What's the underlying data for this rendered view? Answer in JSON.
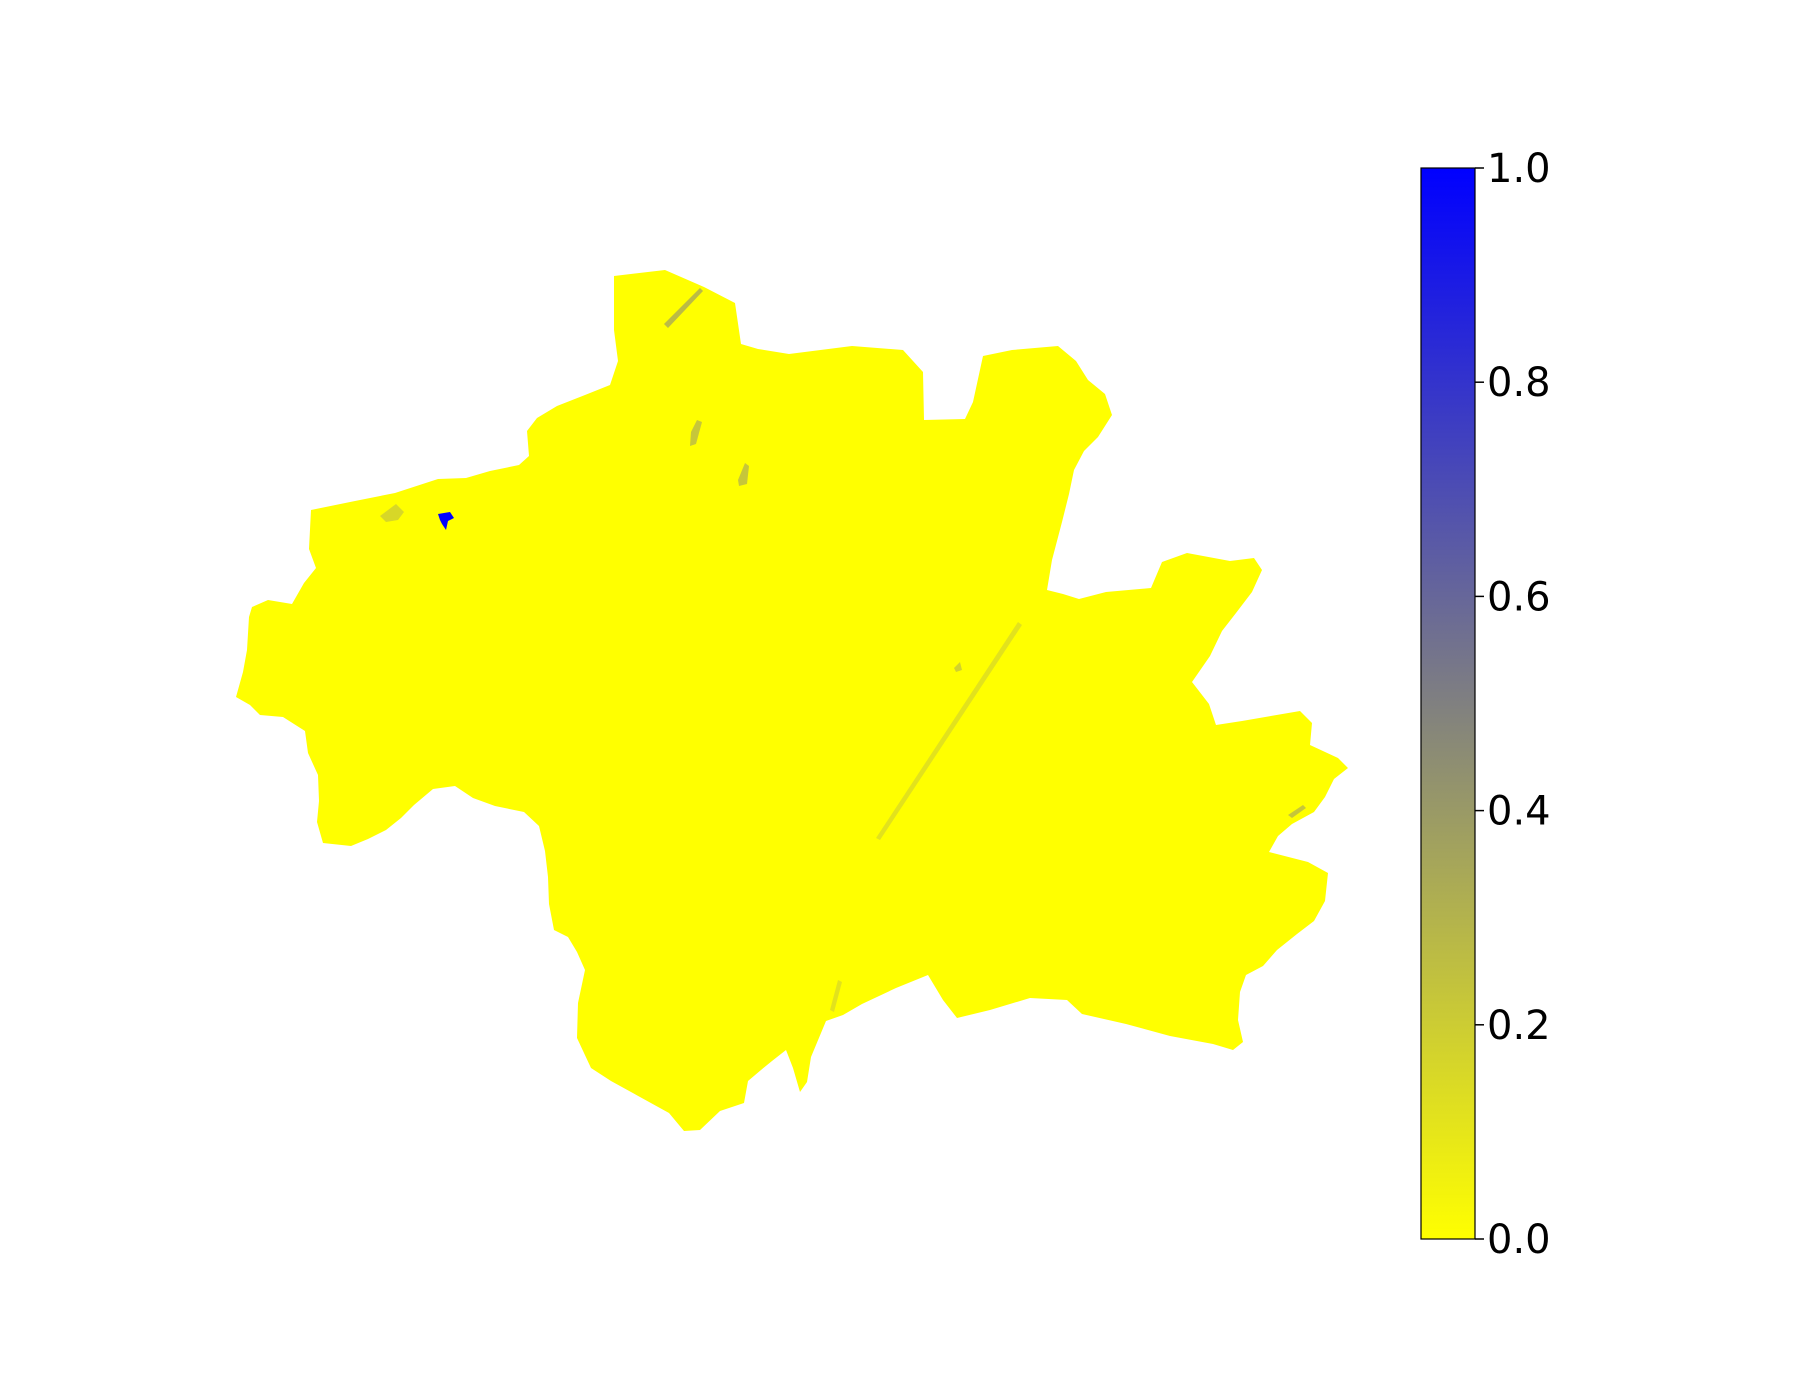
{
  "map": {
    "fill_color": "#ffff00",
    "high_value_patch": {
      "value": 1.0
    },
    "mid_value_patches": {
      "value_range": [
        0.3,
        0.6
      ]
    }
  },
  "colorbar": {
    "range": [
      0.0,
      1.0
    ],
    "low_color": "#ffff00",
    "mid_color": "#808080",
    "high_color": "#0000ff",
    "ticks": [
      {
        "value": 0.0,
        "label": "0.0"
      },
      {
        "value": 0.2,
        "label": "0.2"
      },
      {
        "value": 0.4,
        "label": "0.4"
      },
      {
        "value": 0.6,
        "label": "0.6"
      },
      {
        "value": 0.8,
        "label": "0.8"
      },
      {
        "value": 1.0,
        "label": "1.0"
      }
    ]
  }
}
